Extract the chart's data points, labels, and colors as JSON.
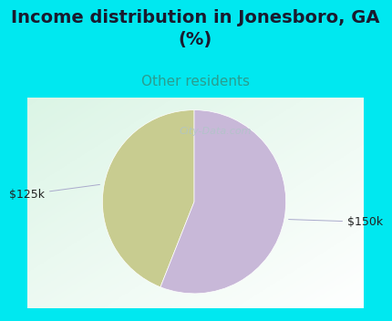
{
  "title": "Income distribution in Jonesboro, GA\n(%)",
  "subtitle": "Other residents",
  "title_color": "#1a1a2e",
  "subtitle_color": "#2a9d8f",
  "title_fontsize": 14,
  "subtitle_fontsize": 11,
  "border_color": "#00e8f0",
  "border_width": 8,
  "background_chart": "#e8f5ee",
  "slices": [
    {
      "label": "$125k",
      "value": 44,
      "color": "#c8cc90"
    },
    {
      "label": "$150k",
      "value": 56,
      "color": "#c8b8d8"
    }
  ],
  "label_fontsize": 9,
  "label_color": "#222222",
  "watermark": "City-Data.com",
  "watermark_color": "#b0c4c8",
  "watermark_fontsize": 8
}
